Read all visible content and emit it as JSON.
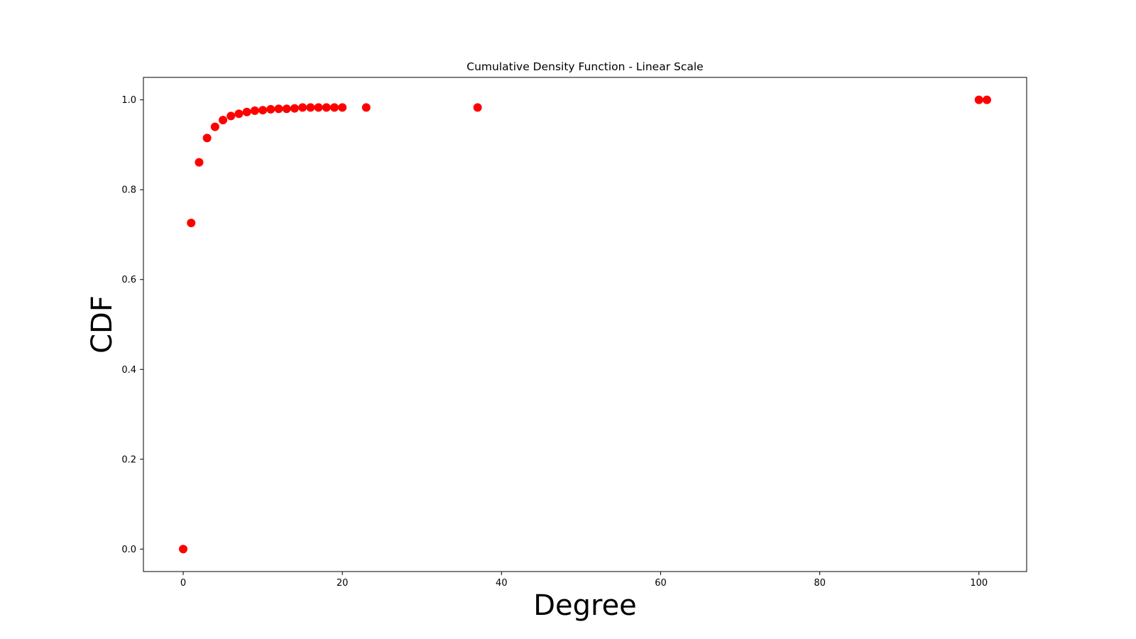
{
  "chart_data": {
    "type": "scatter",
    "title": "Cumulative Density Function - Linear Scale",
    "xlabel": "Degree",
    "ylabel": "CDF",
    "xlim": [
      -5,
      106
    ],
    "ylim": [
      -0.05,
      1.05
    ],
    "xticks": [
      0,
      20,
      40,
      60,
      80,
      100
    ],
    "yticks": [
      0.0,
      0.2,
      0.4,
      0.6,
      0.8,
      1.0
    ],
    "xtick_labels": [
      "0",
      "20",
      "40",
      "60",
      "80",
      "100"
    ],
    "ytick_labels": [
      "0.0",
      "0.2",
      "0.4",
      "0.6",
      "0.8",
      "1.0"
    ],
    "grid": false,
    "marker_color": "#ff0000",
    "points": [
      {
        "x": 0,
        "y": 0.0
      },
      {
        "x": 1,
        "y": 0.726
      },
      {
        "x": 2,
        "y": 0.861
      },
      {
        "x": 3,
        "y": 0.915
      },
      {
        "x": 4,
        "y": 0.94
      },
      {
        "x": 5,
        "y": 0.955
      },
      {
        "x": 6,
        "y": 0.964
      },
      {
        "x": 7,
        "y": 0.969
      },
      {
        "x": 8,
        "y": 0.973
      },
      {
        "x": 9,
        "y": 0.976
      },
      {
        "x": 10,
        "y": 0.977
      },
      {
        "x": 11,
        "y": 0.979
      },
      {
        "x": 12,
        "y": 0.98
      },
      {
        "x": 13,
        "y": 0.98
      },
      {
        "x": 14,
        "y": 0.981
      },
      {
        "x": 15,
        "y": 0.983
      },
      {
        "x": 16,
        "y": 0.983
      },
      {
        "x": 17,
        "y": 0.983
      },
      {
        "x": 18,
        "y": 0.983
      },
      {
        "x": 19,
        "y": 0.983
      },
      {
        "x": 20,
        "y": 0.983
      },
      {
        "x": 23,
        "y": 0.983
      },
      {
        "x": 37,
        "y": 0.983
      },
      {
        "x": 100,
        "y": 1.0
      },
      {
        "x": 101,
        "y": 1.0
      }
    ]
  }
}
